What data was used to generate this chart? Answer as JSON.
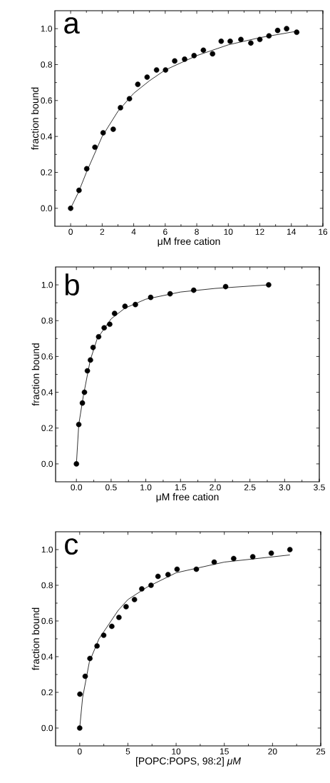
{
  "chart_data": [
    {
      "type": "scatter",
      "annotations": [
        "a"
      ],
      "xlabel": "μM free cation",
      "ylabel": "fraction bound",
      "xlim": [
        -1,
        16
      ],
      "ylim": [
        -0.1,
        1.1
      ],
      "xticks": [
        0,
        2,
        4,
        6,
        8,
        10,
        12,
        14,
        16
      ],
      "yticks": [
        {
          "value": 0,
          "label": "0.0"
        },
        {
          "value": 0.2,
          "label": "0.2"
        },
        {
          "value": 0.4,
          "label": "0.4"
        },
        {
          "value": 0.6,
          "label": "0.6"
        },
        {
          "value": 0.8,
          "label": "0.8"
        },
        {
          "value": 1,
          "label": "1.0"
        }
      ],
      "grid": false,
      "legend": false,
      "series": [
        {
          "type": "scatter",
          "marker": "circle",
          "color": "#000000",
          "x": [
            0,
            0.53,
            1.02,
            1.54,
            2.06,
            2.7,
            3.16,
            3.73,
            4.26,
            4.85,
            5.45,
            6.02,
            6.6,
            7.23,
            7.83,
            8.42,
            9.0,
            9.55,
            10.12,
            10.8,
            11.43,
            12.0,
            12.58,
            13.13,
            13.7,
            14.34
          ],
          "values": [
            0,
            0.1,
            0.22,
            0.34,
            0.42,
            0.44,
            0.56,
            0.61,
            0.69,
            0.73,
            0.77,
            0.77,
            0.82,
            0.83,
            0.85,
            0.88,
            0.86,
            0.93,
            0.93,
            0.94,
            0.92,
            0.94,
            0.96,
            0.99,
            1.0,
            0.98
          ]
        },
        {
          "type": "line",
          "line_style": "solid",
          "color": "#000000",
          "x": [
            0,
            0.5,
            1,
            2,
            3,
            4,
            5,
            6,
            8,
            10,
            12,
            14.3
          ],
          "values": [
            0,
            0.09,
            0.2,
            0.4,
            0.54,
            0.64,
            0.71,
            0.77,
            0.85,
            0.91,
            0.95,
            0.985
          ]
        }
      ]
    },
    {
      "type": "scatter",
      "annotations": [
        "b"
      ],
      "xlabel": "μM free cation",
      "ylabel": "fraction bound",
      "xlim": [
        -0.3,
        3.5
      ],
      "ylim": [
        -0.1,
        1.1
      ],
      "xticks": [
        {
          "value": 0,
          "label": "0.0"
        },
        0.5,
        {
          "value": 1,
          "label": "1.0"
        },
        1.5,
        {
          "value": 2,
          "label": "2.0"
        },
        2.5,
        {
          "value": 3,
          "label": "3.0"
        },
        3.5
      ],
      "yticks": [
        {
          "value": 0,
          "label": "0.0"
        },
        {
          "value": 0.2,
          "label": "0.2"
        },
        {
          "value": 0.4,
          "label": "0.4"
        },
        {
          "value": 0.6,
          "label": "0.6"
        },
        {
          "value": 0.8,
          "label": "0.8"
        },
        {
          "value": 1,
          "label": "1.0"
        }
      ],
      "grid": false,
      "legend": false,
      "series": [
        {
          "type": "scatter",
          "marker": "circle",
          "color": "#000000",
          "x": [
            0,
            0.034,
            0.086,
            0.116,
            0.158,
            0.202,
            0.24,
            0.32,
            0.4,
            0.48,
            0.55,
            0.7,
            0.85,
            1.07,
            1.35,
            1.69,
            2.15,
            2.77
          ],
          "values": [
            0,
            0.22,
            0.34,
            0.4,
            0.52,
            0.58,
            0.65,
            0.71,
            0.76,
            0.78,
            0.84,
            0.88,
            0.89,
            0.93,
            0.95,
            0.97,
            0.99,
            1.0
          ]
        },
        {
          "type": "line",
          "line_style": "solid",
          "color": "#000000",
          "x": [
            0,
            0.034,
            0.1,
            0.2,
            0.3,
            0.5,
            0.7,
            1.0,
            1.5,
            2.0,
            2.77
          ],
          "values": [
            0,
            0.22,
            0.38,
            0.58,
            0.7,
            0.81,
            0.87,
            0.92,
            0.96,
            0.98,
            1.0
          ]
        }
      ]
    },
    {
      "type": "scatter",
      "annotations": [
        "c"
      ],
      "xlabel": "[POPC:POPS, 98:2] *μM*",
      "ylabel": "fraction bound",
      "xlim": [
        -2.5,
        25
      ],
      "ylim": [
        -0.1,
        1.1
      ],
      "xticks": [
        0,
        5,
        10,
        15,
        20,
        25
      ],
      "yticks": [
        {
          "value": 0,
          "label": "0.0"
        },
        {
          "value": 0.2,
          "label": "0.2"
        },
        {
          "value": 0.4,
          "label": "0.4"
        },
        {
          "value": 0.6,
          "label": "0.6"
        },
        {
          "value": 0.8,
          "label": "0.8"
        },
        {
          "value": 1,
          "label": "1.0"
        }
      ],
      "grid": false,
      "legend": false,
      "series": [
        {
          "type": "scatter",
          "marker": "circle",
          "color": "#000000",
          "x": [
            0,
            0.02,
            0.57,
            1.06,
            1.8,
            2.49,
            3.33,
            4.07,
            4.81,
            5.68,
            6.44,
            7.4,
            8.12,
            9.16,
            10.1,
            12.1,
            13.95,
            15.97,
            17.95,
            19.87,
            21.8
          ],
          "values": [
            0,
            0.19,
            0.29,
            0.39,
            0.46,
            0.52,
            0.57,
            0.62,
            0.68,
            0.72,
            0.78,
            0.8,
            0.85,
            0.86,
            0.89,
            0.89,
            0.93,
            0.95,
            0.96,
            0.98,
            1.0
          ]
        },
        {
          "type": "line",
          "line_style": "solid",
          "color": "#000000",
          "x": [
            0,
            0.3,
            1,
            2,
            3,
            4,
            5,
            7,
            10,
            15,
            21.8
          ],
          "values": [
            0,
            0.17,
            0.37,
            0.5,
            0.58,
            0.66,
            0.72,
            0.79,
            0.87,
            0.93,
            0.97
          ]
        }
      ]
    }
  ]
}
